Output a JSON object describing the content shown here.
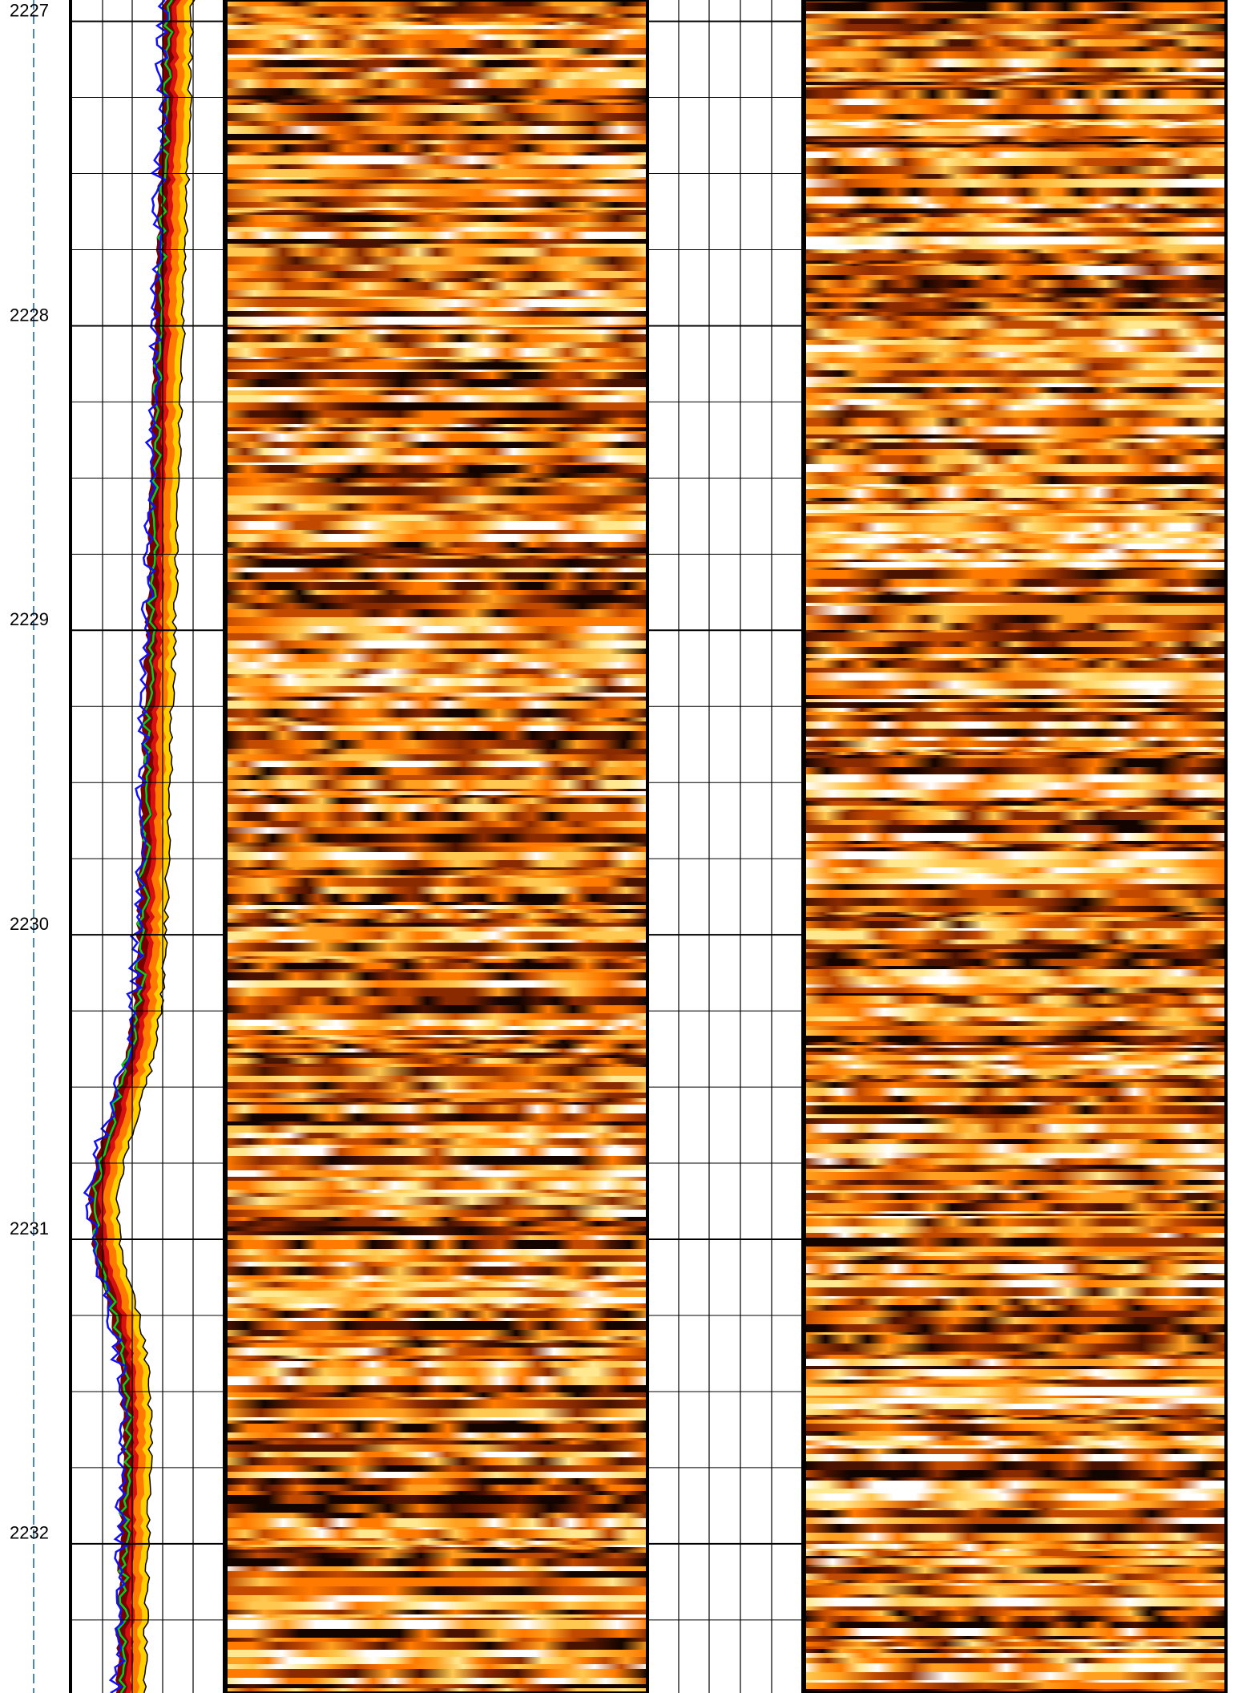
{
  "chart_data": {
    "type": "well-log",
    "ylim": [
      2226.93,
      2232.49
    ],
    "yticks": [
      2227,
      2228,
      2229,
      2230,
      2231,
      2232
    ],
    "grid": true
  }
}
